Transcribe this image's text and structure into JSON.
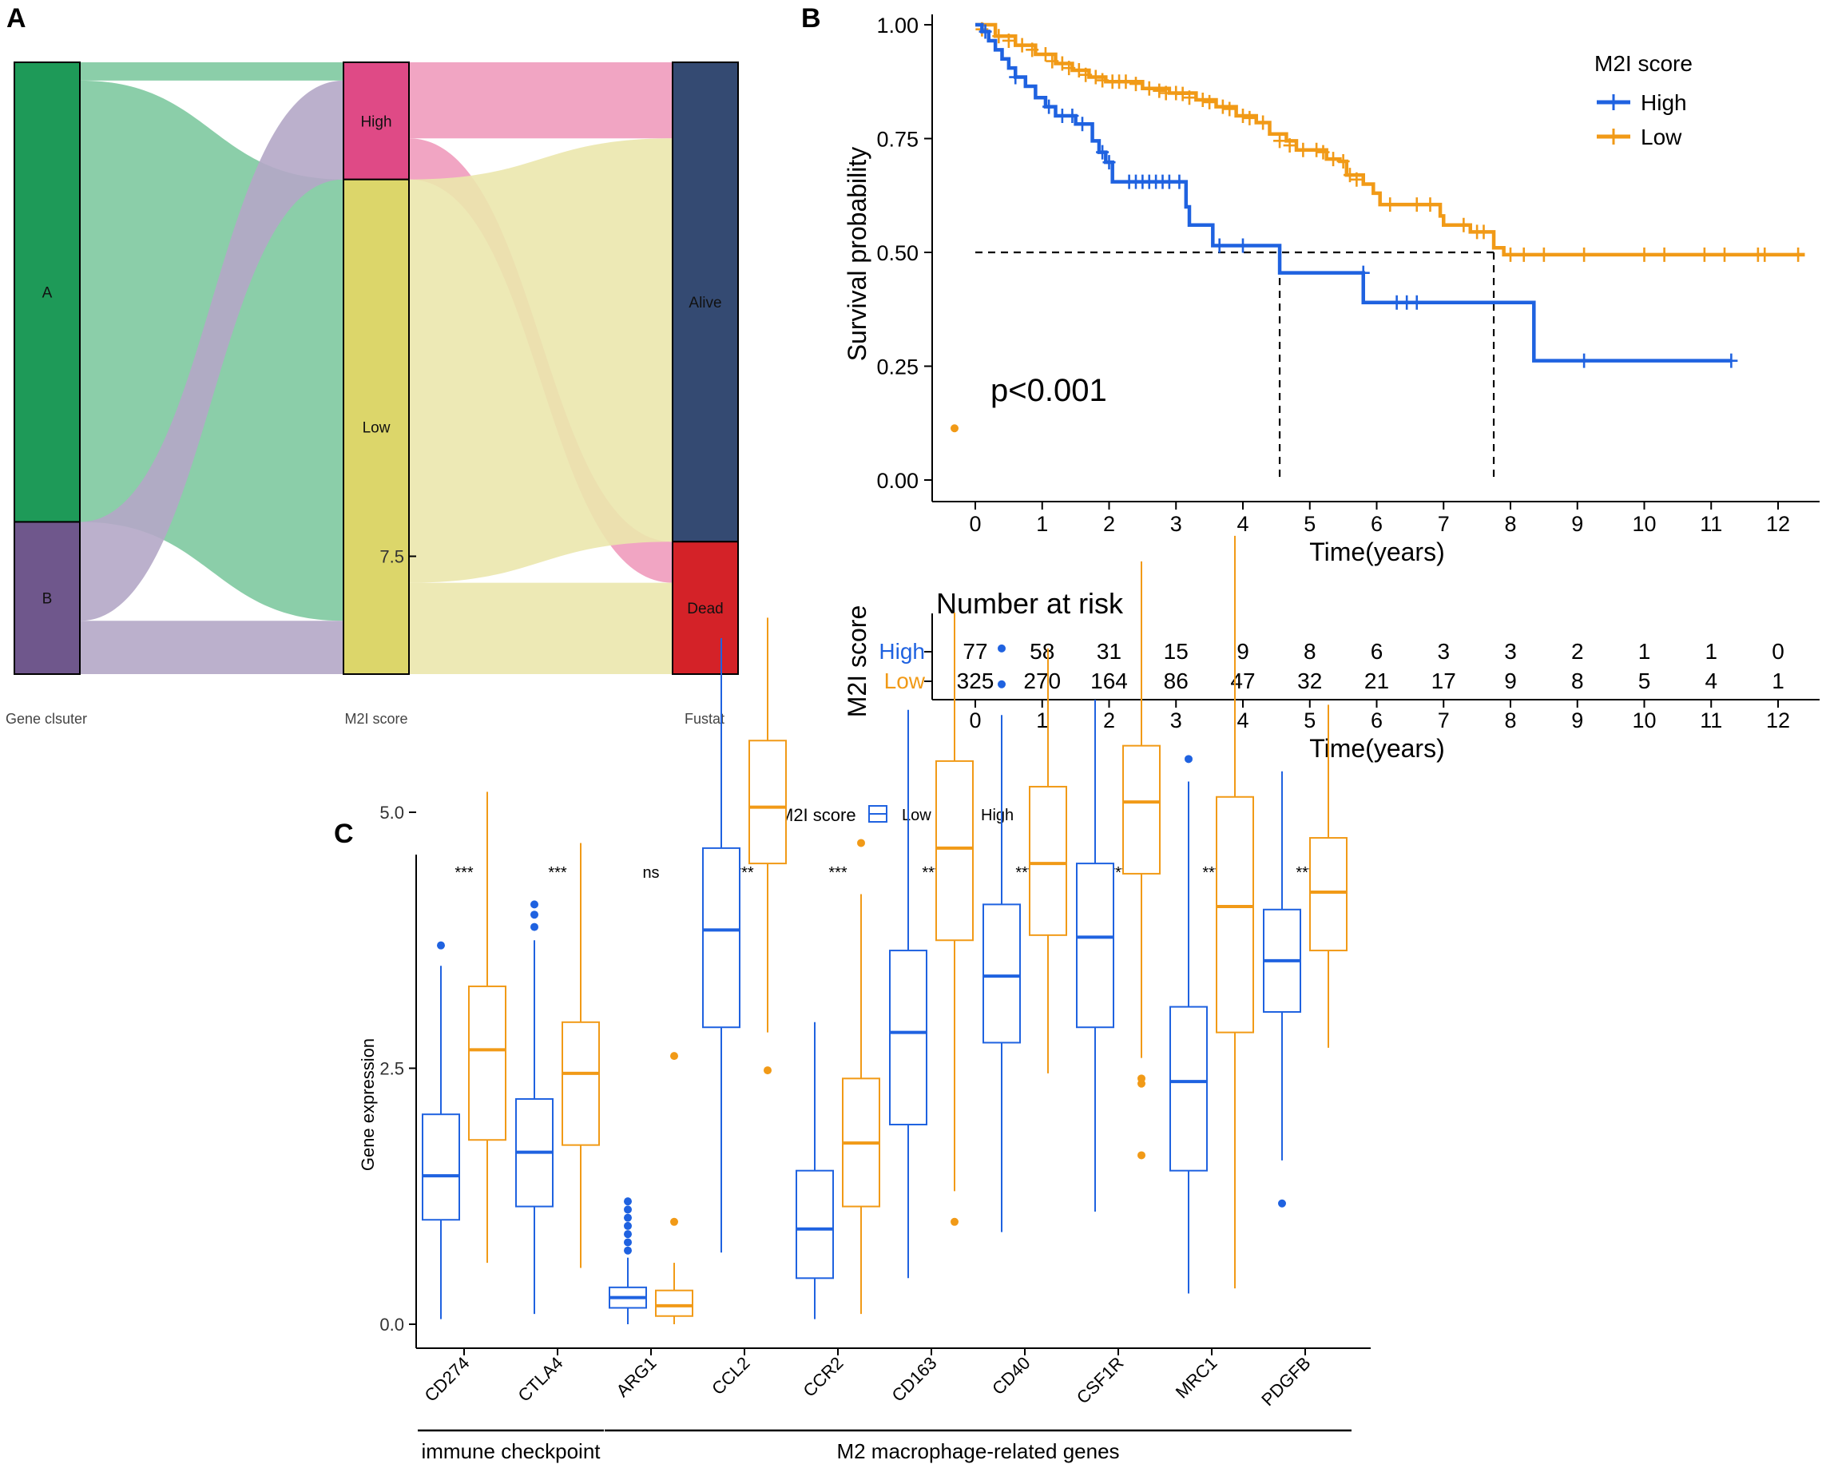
{
  "panel_labels": {
    "a": "A",
    "b": "B",
    "c": "C"
  },
  "colors": {
    "cluster_a": "#1e9a58",
    "cluster_b": "#6f578c",
    "score_high": "#df4a86",
    "score_low": "#dcd66a",
    "alive": "#344a72",
    "dead": "#d42228",
    "flow_a": "#7ec9a0",
    "flow_b": "#b4a7c6",
    "flow_high": "#ef9bbd",
    "flow_low": "#ebe7ad",
    "km_high": "#1f62e0",
    "km_low": "#f19a17"
  },
  "chart_data": [
    {
      "type": "sankey",
      "panel": "A",
      "axes": [
        "Gene clsuter",
        "M2I score",
        "Fustat"
      ],
      "nodes": {
        "axis0": [
          {
            "name": "A",
            "value": 302
          },
          {
            "name": "B",
            "value": 100
          }
        ],
        "axis1": [
          {
            "name": "High",
            "value": 77
          },
          {
            "name": "Low",
            "value": 325
          }
        ],
        "axis2": [
          {
            "name": "Alive",
            "value": 315
          },
          {
            "name": "Dead",
            "value": 87
          }
        ]
      },
      "flows_01": [
        {
          "from": "A",
          "to": "High",
          "value": 12
        },
        {
          "from": "A",
          "to": "Low",
          "value": 290
        },
        {
          "from": "B",
          "to": "High",
          "value": 65
        },
        {
          "from": "B",
          "to": "Low",
          "value": 35
        }
      ],
      "flows_12": [
        {
          "from": "High",
          "to": "Alive",
          "value": 50
        },
        {
          "from": "High",
          "to": "Dead",
          "value": 27
        },
        {
          "from": "Low",
          "to": "Alive",
          "value": 265
        },
        {
          "from": "Low",
          "to": "Dead",
          "value": 60
        }
      ]
    },
    {
      "type": "line",
      "subtype": "kaplan-meier",
      "panel": "B",
      "xlabel": "Time(years)",
      "ylabel": "Survival probability",
      "xlim": [
        0,
        12.4
      ],
      "ylim": [
        0,
        1
      ],
      "xticks": [
        0,
        1,
        2,
        3,
        4,
        5,
        6,
        7,
        8,
        9,
        10,
        11,
        12
      ],
      "yticks": [
        "0.00",
        "0.25",
        "0.50",
        "0.75",
        "1.00"
      ],
      "legend_title": "M2I score",
      "pvalue": "p<0.001",
      "median_survival": {
        "High": 4.55,
        "Low": 7.75
      },
      "series": [
        {
          "name": "High",
          "steps": [
            [
              0,
              1.0
            ],
            [
              0.1,
              0.985
            ],
            [
              0.2,
              0.965
            ],
            [
              0.3,
              0.945
            ],
            [
              0.4,
              0.925
            ],
            [
              0.5,
              0.905
            ],
            [
              0.6,
              0.885
            ],
            [
              0.75,
              0.865
            ],
            [
              0.9,
              0.84
            ],
            [
              1.05,
              0.82
            ],
            [
              1.2,
              0.8
            ],
            [
              1.5,
              0.782
            ],
            [
              1.75,
              0.745
            ],
            [
              1.85,
              0.72
            ],
            [
              1.95,
              0.698
            ],
            [
              2.05,
              0.655
            ],
            [
              3.15,
              0.6
            ],
            [
              3.2,
              0.56
            ],
            [
              3.55,
              0.515
            ],
            [
              4.55,
              0.455
            ],
            [
              5.8,
              0.39
            ],
            [
              8.35,
              0.262
            ],
            [
              11.3,
              0.262
            ]
          ],
          "censors": [
            [
              0.15,
              0.985
            ],
            [
              0.6,
              0.885
            ],
            [
              1.1,
              0.82
            ],
            [
              1.3,
              0.8
            ],
            [
              1.45,
              0.8
            ],
            [
              1.6,
              0.782
            ],
            [
              1.9,
              0.72
            ],
            [
              2.0,
              0.698
            ],
            [
              2.3,
              0.655
            ],
            [
              2.4,
              0.655
            ],
            [
              2.5,
              0.655
            ],
            [
              2.6,
              0.655
            ],
            [
              2.7,
              0.655
            ],
            [
              2.8,
              0.655
            ],
            [
              2.9,
              0.655
            ],
            [
              3.05,
              0.655
            ],
            [
              3.65,
              0.515
            ],
            [
              4.0,
              0.515
            ],
            [
              5.8,
              0.455
            ],
            [
              6.3,
              0.39
            ],
            [
              6.45,
              0.39
            ],
            [
              6.6,
              0.39
            ],
            [
              9.1,
              0.262
            ],
            [
              11.3,
              0.262
            ]
          ]
        },
        {
          "name": "Low",
          "steps": [
            [
              0,
              1.0
            ],
            [
              0.3,
              0.975
            ],
            [
              0.6,
              0.955
            ],
            [
              0.9,
              0.935
            ],
            [
              1.2,
              0.915
            ],
            [
              1.45,
              0.9
            ],
            [
              1.7,
              0.885
            ],
            [
              1.95,
              0.875
            ],
            [
              2.3,
              0.875
            ],
            [
              2.5,
              0.86
            ],
            [
              2.9,
              0.85
            ],
            [
              3.3,
              0.835
            ],
            [
              3.6,
              0.82
            ],
            [
              3.9,
              0.8
            ],
            [
              4.2,
              0.785
            ],
            [
              4.4,
              0.76
            ],
            [
              4.65,
              0.745
            ],
            [
              4.8,
              0.725
            ],
            [
              5.0,
              0.725
            ],
            [
              5.25,
              0.705
            ],
            [
              5.45,
              0.7
            ],
            [
              5.55,
              0.67
            ],
            [
              5.8,
              0.65
            ],
            [
              5.95,
              0.63
            ],
            [
              6.05,
              0.605
            ],
            [
              6.95,
              0.58
            ],
            [
              7.0,
              0.56
            ],
            [
              7.4,
              0.545
            ],
            [
              7.75,
              0.51
            ],
            [
              7.9,
              0.495
            ],
            [
              12.4,
              0.495
            ]
          ],
          "censors": [
            [
              0.1,
              0.99
            ],
            [
              0.35,
              0.975
            ],
            [
              0.5,
              0.965
            ],
            [
              0.7,
              0.955
            ],
            [
              0.85,
              0.945
            ],
            [
              1.05,
              0.935
            ],
            [
              1.15,
              0.92
            ],
            [
              1.3,
              0.915
            ],
            [
              1.4,
              0.905
            ],
            [
              1.55,
              0.9
            ],
            [
              1.65,
              0.89
            ],
            [
              1.8,
              0.885
            ],
            [
              1.9,
              0.878
            ],
            [
              2.05,
              0.875
            ],
            [
              2.15,
              0.875
            ],
            [
              2.25,
              0.875
            ],
            [
              2.4,
              0.87
            ],
            [
              2.6,
              0.86
            ],
            [
              2.75,
              0.855
            ],
            [
              2.85,
              0.85
            ],
            [
              3.0,
              0.85
            ],
            [
              3.1,
              0.848
            ],
            [
              3.2,
              0.84
            ],
            [
              3.4,
              0.835
            ],
            [
              3.5,
              0.83
            ],
            [
              3.7,
              0.82
            ],
            [
              3.8,
              0.815
            ],
            [
              4.0,
              0.8
            ],
            [
              4.1,
              0.795
            ],
            [
              4.3,
              0.785
            ],
            [
              4.55,
              0.745
            ],
            [
              4.7,
              0.735
            ],
            [
              4.9,
              0.725
            ],
            [
              5.1,
              0.725
            ],
            [
              5.2,
              0.72
            ],
            [
              5.35,
              0.705
            ],
            [
              5.5,
              0.7
            ],
            [
              5.6,
              0.67
            ],
            [
              5.7,
              0.66
            ],
            [
              6.2,
              0.605
            ],
            [
              6.6,
              0.605
            ],
            [
              6.8,
              0.605
            ],
            [
              7.3,
              0.56
            ],
            [
              7.5,
              0.545
            ],
            [
              7.6,
              0.545
            ],
            [
              8.0,
              0.495
            ],
            [
              8.2,
              0.495
            ],
            [
              8.5,
              0.495
            ],
            [
              9.1,
              0.495
            ],
            [
              10.0,
              0.495
            ],
            [
              10.3,
              0.495
            ],
            [
              10.9,
              0.495
            ],
            [
              11.2,
              0.495
            ],
            [
              11.7,
              0.495
            ],
            [
              11.8,
              0.495
            ],
            [
              12.3,
              0.495
            ]
          ]
        }
      ]
    },
    {
      "type": "table",
      "panel": "B-risk",
      "title": "Number at risk",
      "ylabel": "M2I score",
      "xlabel": "Time(years)",
      "times": [
        0,
        1,
        2,
        3,
        4,
        5,
        6,
        7,
        8,
        9,
        10,
        11,
        12
      ],
      "rows": [
        {
          "name": "High",
          "values": [
            77,
            58,
            31,
            15,
            9,
            8,
            6,
            3,
            3,
            2,
            1,
            1,
            0
          ]
        },
        {
          "name": "Low",
          "values": [
            325,
            270,
            164,
            86,
            47,
            32,
            21,
            17,
            9,
            8,
            5,
            4,
            1
          ]
        }
      ]
    },
    {
      "type": "boxplot",
      "panel": "C",
      "ylabel": "Gene expression",
      "ylim": [
        -0.4,
        9.2
      ],
      "yticks": [
        "0.0",
        "2.5",
        "5.0",
        "7.5"
      ],
      "legend_title": "M2I score",
      "legend_items": [
        "Low",
        "High"
      ],
      "categories": [
        "CD274",
        "CTLA4",
        "ARG1",
        "CCL2",
        "CCR2",
        "CD163",
        "CD40",
        "CSF1R",
        "MRC1",
        "PDGFB"
      ],
      "significance": [
        "***",
        "***",
        "ns",
        "***",
        "***",
        "***",
        "***",
        "***",
        "***",
        "***"
      ],
      "series": [
        {
          "name": "Low",
          "boxes": [
            {
              "wl": 0.05,
              "q1": 1.02,
              "med": 1.45,
              "q3": 2.05,
              "wh": 3.5,
              "out": [
                3.7
              ]
            },
            {
              "wl": 0.1,
              "q1": 1.15,
              "med": 1.68,
              "q3": 2.2,
              "wh": 3.75,
              "out": [
                3.88,
                4.0,
                4.1
              ]
            },
            {
              "wl": 0.0,
              "q1": 0.16,
              "med": 0.26,
              "q3": 0.36,
              "wh": 0.65,
              "out": [
                0.72,
                0.8,
                0.88,
                0.96,
                1.04,
                1.12,
                1.2
              ]
            },
            {
              "wl": 0.7,
              "q1": 2.9,
              "med": 3.85,
              "q3": 4.65,
              "wh": 6.7,
              "out": []
            },
            {
              "wl": 0.05,
              "q1": 0.45,
              "med": 0.93,
              "q3": 1.5,
              "wh": 2.95,
              "out": []
            },
            {
              "wl": 0.45,
              "q1": 1.95,
              "med": 2.85,
              "q3": 3.65,
              "wh": 6.0,
              "out": []
            },
            {
              "wl": 0.9,
              "q1": 2.75,
              "med": 3.4,
              "q3": 4.1,
              "wh": 5.95,
              "out": [
                6.25,
                6.6
              ]
            },
            {
              "wl": 1.1,
              "q1": 2.9,
              "med": 3.78,
              "q3": 4.5,
              "wh": 6.1,
              "out": []
            },
            {
              "wl": 0.3,
              "q1": 1.5,
              "med": 2.37,
              "q3": 3.1,
              "wh": 5.3,
              "out": [
                5.52
              ]
            },
            {
              "wl": 1.6,
              "q1": 3.05,
              "med": 3.55,
              "q3": 4.05,
              "wh": 5.4,
              "out": [
                1.18
              ]
            }
          ]
        },
        {
          "name": "High",
          "boxes": [
            {
              "wl": 0.6,
              "q1": 1.8,
              "med": 2.68,
              "q3": 3.3,
              "wh": 5.2,
              "out": []
            },
            {
              "wl": 0.55,
              "q1": 1.75,
              "med": 2.45,
              "q3": 2.95,
              "wh": 4.7,
              "out": []
            },
            {
              "wl": 0.0,
              "q1": 0.08,
              "med": 0.18,
              "q3": 0.33,
              "wh": 0.6,
              "out": [
                1.0,
                2.62
              ]
            },
            {
              "wl": 2.85,
              "q1": 4.5,
              "med": 5.05,
              "q3": 5.7,
              "wh": 6.9,
              "out": [
                2.48
              ]
            },
            {
              "wl": 0.1,
              "q1": 1.15,
              "med": 1.77,
              "q3": 2.4,
              "wh": 4.2,
              "out": [
                4.7
              ]
            },
            {
              "wl": 1.3,
              "q1": 3.75,
              "med": 4.65,
              "q3": 5.5,
              "wh": 6.95,
              "out": [
                1.0,
                8.75
              ]
            },
            {
              "wl": 2.45,
              "q1": 3.8,
              "med": 4.5,
              "q3": 5.25,
              "wh": 6.6,
              "out": []
            },
            {
              "wl": 2.6,
              "q1": 4.4,
              "med": 5.1,
              "q3": 5.65,
              "wh": 7.45,
              "out": [
                1.65,
                2.35,
                2.4
              ]
            },
            {
              "wl": 0.35,
              "q1": 2.85,
              "med": 4.08,
              "q3": 5.15,
              "wh": 7.7,
              "out": []
            },
            {
              "wl": 2.7,
              "q1": 3.65,
              "med": 4.22,
              "q3": 4.75,
              "wh": 6.05,
              "out": []
            }
          ]
        }
      ],
      "groups": [
        {
          "label": "immune checkpoint",
          "from": 0,
          "to": 1
        },
        {
          "label": "M2 macrophage-related genes",
          "from": 2,
          "to": 9
        }
      ]
    }
  ]
}
